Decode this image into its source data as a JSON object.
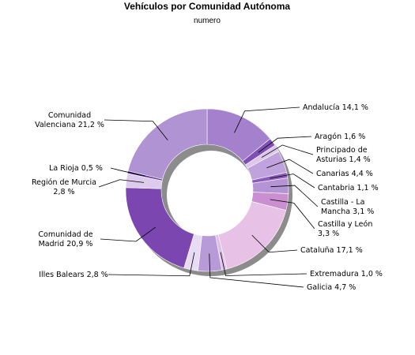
{
  "chart_data": {
    "type": "pie",
    "style": "donut",
    "title": "Vehículos por Comunidad Autónoma",
    "subtitle": "numero",
    "slices": [
      {
        "name": "Andalucía",
        "percent": 14.1,
        "label": [
          "Andalucía 14,1 %"
        ],
        "color": "#a580cc"
      },
      {
        "name": "Aragón",
        "percent": 1.6,
        "label": [
          "Aragón 1,6 %"
        ],
        "color": "#7e4fb5"
      },
      {
        "name": "Principado de Asturias",
        "percent": 1.4,
        "label": [
          "Principado de",
          "Asturias 1,4 %"
        ],
        "color": "#dcc6ec"
      },
      {
        "name": "Canarias",
        "percent": 4.4,
        "label": [
          "Canarias 4,4 %"
        ],
        "color": "#c0a3dc"
      },
      {
        "name": "Cantabria",
        "percent": 1.1,
        "label": [
          "Cantabria 1,1 %"
        ],
        "color": "#8b5bbd"
      },
      {
        "name": "Castilla - La Mancha",
        "percent": 3.1,
        "label": [
          "Castilla - La",
          "Mancha 3,1 %"
        ],
        "color": "#b594d6"
      },
      {
        "name": "Castilla y León",
        "percent": 3.3,
        "label": [
          "Castilla y León",
          "3,3 %"
        ],
        "color": "#c98fd0"
      },
      {
        "name": "Cataluña",
        "percent": 17.1,
        "label": [
          "Cataluña 17,1 %"
        ],
        "color": "#e8c2e6"
      },
      {
        "name": "Extremadura",
        "percent": 1.0,
        "label": [
          "Extremadura 1,0 %"
        ],
        "color": "#dcc0ea"
      },
      {
        "name": "Galicia",
        "percent": 4.7,
        "label": [
          "Galicia 4,7 %"
        ],
        "color": "#b79ad8"
      },
      {
        "name": "Illes Balears",
        "percent": 2.8,
        "label": [
          "Illes Balears 2,8 %"
        ],
        "color": "#e8dcf4"
      },
      {
        "name": "Comunidad de Madrid",
        "percent": 20.9,
        "label": [
          "Comunidad de",
          "Madrid 20,9 %"
        ],
        "color": "#7b46b0"
      },
      {
        "name": "Región de Murcia",
        "percent": 2.8,
        "label": [
          "Región de Murcia",
          "2,8 %"
        ],
        "color": "#dccbec"
      },
      {
        "name": "La Rioja",
        "percent": 0.5,
        "label": [
          "La Rioja 0,5 %"
        ],
        "color": "#5b2e91"
      },
      {
        "name": "Comunidad Valenciana",
        "percent": 21.2,
        "label": [
          "Comunidad",
          "Valenciana 21,2 %"
        ],
        "color": "#b093d3"
      }
    ],
    "legend": "none",
    "start_angle_deg": 0,
    "direction": "clockwise"
  }
}
